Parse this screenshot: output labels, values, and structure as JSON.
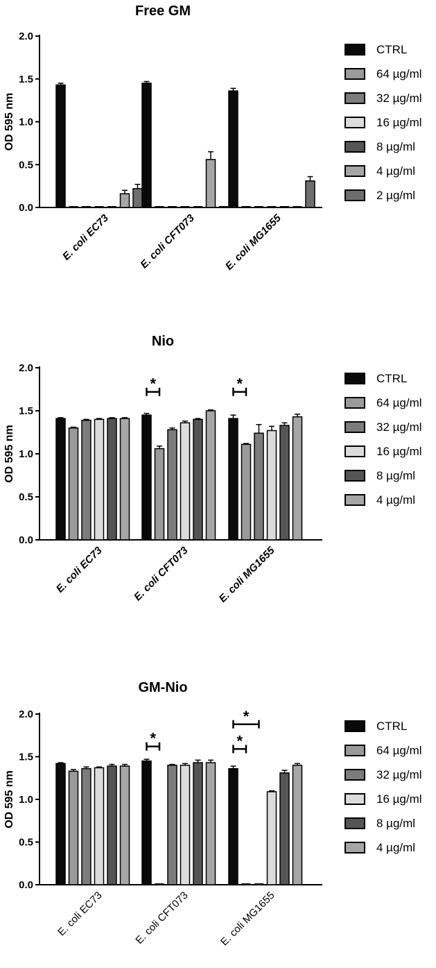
{
  "colors": {
    "CTRL": "#0a0a0a",
    "64": "#9a9a9a",
    "32": "#7c7c7c",
    "16": "#dcdcdc",
    "8": "#555555",
    "4": "#a6a6a6",
    "2": "#6e6e6e"
  },
  "chart_data": [
    {
      "type": "bar",
      "title": "Free GM",
      "ylabel": "OD 595 nm",
      "xlabel": "",
      "ylim": [
        0,
        2.0
      ],
      "yticks": [
        "0.0",
        "0.5",
        "1.0",
        "1.5",
        "2.0"
      ],
      "categories": [
        "E. coli EC73",
        "E. coli CFT073",
        "E. coli MG1655"
      ],
      "category_style": "italic",
      "legend_position": "right",
      "series": [
        {
          "name": "CTRL",
          "color_key": "CTRL",
          "values": [
            1.43,
            1.45,
            1.36
          ],
          "errors": [
            0.02,
            0.02,
            0.03
          ]
        },
        {
          "name": " 64 µg/ml",
          "color_key": "64",
          "values": [
            0.0,
            0.0,
            0.0
          ],
          "errors": [
            0,
            0,
            0
          ]
        },
        {
          "name": "32 µg/ml",
          "color_key": "32",
          "values": [
            0.0,
            0.0,
            0.0
          ],
          "errors": [
            0,
            0,
            0
          ]
        },
        {
          "name": "16 µg/ml",
          "color_key": "16",
          "values": [
            0.0,
            0.0,
            0.0
          ],
          "errors": [
            0,
            0,
            0
          ]
        },
        {
          "name": "8 µg/ml",
          "color_key": "8",
          "values": [
            0.0,
            0.0,
            0.0
          ],
          "errors": [
            0,
            0,
            0
          ]
        },
        {
          "name": "4 µg/ml",
          "color_key": "4",
          "values": [
            0.16,
            0.56,
            0.0
          ],
          "errors": [
            0.04,
            0.09,
            0
          ]
        },
        {
          "name": "2 µg/ml",
          "color_key": "2",
          "values": [
            0.22,
            0.0,
            0.31
          ],
          "errors": [
            0.05,
            0,
            0.05
          ]
        }
      ],
      "significance": []
    },
    {
      "type": "bar",
      "title": "Nio",
      "ylabel": "OD 595 nm",
      "xlabel": "",
      "ylim": [
        0,
        2.0
      ],
      "yticks": [
        "0.0",
        "0.5",
        "1.0",
        "1.5",
        "2.0"
      ],
      "categories": [
        "E. coli EC73",
        "E. coli CFT073",
        "E. coli MG1655"
      ],
      "category_style": "italic",
      "legend_position": "right",
      "series": [
        {
          "name": "CTRL",
          "color_key": "CTRL",
          "values": [
            1.41,
            1.45,
            1.41
          ],
          "errors": [
            0.01,
            0.02,
            0.04
          ]
        },
        {
          "name": "64 µg/ml",
          "color_key": "64",
          "values": [
            1.3,
            1.06,
            1.11
          ],
          "errors": [
            0.01,
            0.03,
            0.01
          ]
        },
        {
          "name": "32 µg/ml",
          "color_key": "32",
          "values": [
            1.39,
            1.28,
            1.24
          ],
          "errors": [
            0.01,
            0.02,
            0.1
          ]
        },
        {
          "name": "16 µg/ml",
          "color_key": "16",
          "values": [
            1.4,
            1.36,
            1.27
          ],
          "errors": [
            0.01,
            0.02,
            0.05
          ]
        },
        {
          "name": "8 µg/ml",
          "color_key": "8",
          "values": [
            1.41,
            1.4,
            1.33
          ],
          "errors": [
            0.01,
            0.01,
            0.03
          ]
        },
        {
          "name": "4 µg/ml",
          "color_key": "4",
          "values": [
            1.41,
            1.5,
            1.43
          ],
          "errors": [
            0.01,
            0.01,
            0.03
          ]
        }
      ],
      "significance": [
        {
          "category": 1,
          "from_series": 0,
          "to_series": 1,
          "y": 1.72,
          "label": "*"
        },
        {
          "category": 2,
          "from_series": 0,
          "to_series": 1,
          "y": 1.72,
          "label": "*"
        }
      ]
    },
    {
      "type": "bar",
      "title": "GM-Nio",
      "ylabel": "OD 595 nm",
      "xlabel": "",
      "ylim": [
        0,
        2.0
      ],
      "yticks": [
        "0.0",
        "0.5",
        "1.0",
        "1.5",
        "2.0"
      ],
      "categories": [
        "E. coli EC73",
        "E. coli CFT073",
        "E. coli MG1655"
      ],
      "category_style": "plain",
      "legend_position": "right",
      "series": [
        {
          "name": "CTRL",
          "color_key": "CTRL",
          "values": [
            1.42,
            1.45,
            1.36
          ],
          "errors": [
            0.01,
            0.02,
            0.03
          ]
        },
        {
          "name": " 64 µg/ml",
          "color_key": "64",
          "values": [
            1.33,
            0.0,
            0.0
          ],
          "errors": [
            0.02,
            0,
            0
          ]
        },
        {
          "name": "32 µg/ml",
          "color_key": "32",
          "values": [
            1.36,
            1.4,
            0.0
          ],
          "errors": [
            0.02,
            0.01,
            0
          ]
        },
        {
          "name": "16 µg/ml",
          "color_key": "16",
          "values": [
            1.37,
            1.4,
            1.09
          ],
          "errors": [
            0.01,
            0.02,
            0.01
          ]
        },
        {
          "name": "8 µg/ml",
          "color_key": "8",
          "values": [
            1.39,
            1.43,
            1.31
          ],
          "errors": [
            0.02,
            0.03,
            0.03
          ]
        },
        {
          "name": "4 µg/ml",
          "color_key": "4",
          "values": [
            1.39,
            1.43,
            1.4
          ],
          "errors": [
            0.02,
            0.03,
            0.02
          ]
        }
      ],
      "significance": [
        {
          "category": 1,
          "from_series": 0,
          "to_series": 1,
          "y": 1.62,
          "label": "*"
        },
        {
          "category": 2,
          "from_series": 0,
          "to_series": 1,
          "y": 1.59,
          "label": "*"
        },
        {
          "category": 2,
          "from_series": 0,
          "to_series": 2,
          "y": 1.88,
          "label": "*"
        }
      ]
    }
  ]
}
